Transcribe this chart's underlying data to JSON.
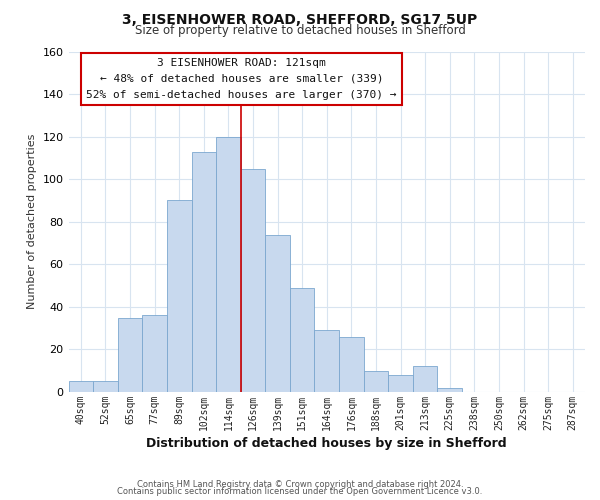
{
  "title_line1": "3, EISENHOWER ROAD, SHEFFORD, SG17 5UP",
  "title_line2": "Size of property relative to detached houses in Shefford",
  "xlabel": "Distribution of detached houses by size in Shefford",
  "ylabel": "Number of detached properties",
  "bar_labels": [
    "40sqm",
    "52sqm",
    "65sqm",
    "77sqm",
    "89sqm",
    "102sqm",
    "114sqm",
    "126sqm",
    "139sqm",
    "151sqm",
    "164sqm",
    "176sqm",
    "188sqm",
    "201sqm",
    "213sqm",
    "225sqm",
    "238sqm",
    "250sqm",
    "262sqm",
    "275sqm",
    "287sqm"
  ],
  "bar_heights": [
    5,
    5,
    35,
    36,
    90,
    113,
    120,
    105,
    74,
    49,
    29,
    26,
    10,
    8,
    12,
    2,
    0,
    0,
    0,
    0,
    0
  ],
  "bar_color": "#c8d9ee",
  "bar_edge_color": "#7ba7cf",
  "ylim": [
    0,
    160
  ],
  "yticks": [
    0,
    20,
    40,
    60,
    80,
    100,
    120,
    140,
    160
  ],
  "annotation_title": "3 EISENHOWER ROAD: 121sqm",
  "annotation_line1": "← 48% of detached houses are smaller (339)",
  "annotation_line2": "52% of semi-detached houses are larger (370) →",
  "annotation_box_color": "#ffffff",
  "annotation_box_edge_color": "#cc0000",
  "property_line_color": "#cc0000",
  "property_bar_index": 6,
  "footer_line1": "Contains HM Land Registry data © Crown copyright and database right 2024.",
  "footer_line2": "Contains public sector information licensed under the Open Government Licence v3.0.",
  "background_color": "#ffffff",
  "grid_color": "#d8e4f0"
}
